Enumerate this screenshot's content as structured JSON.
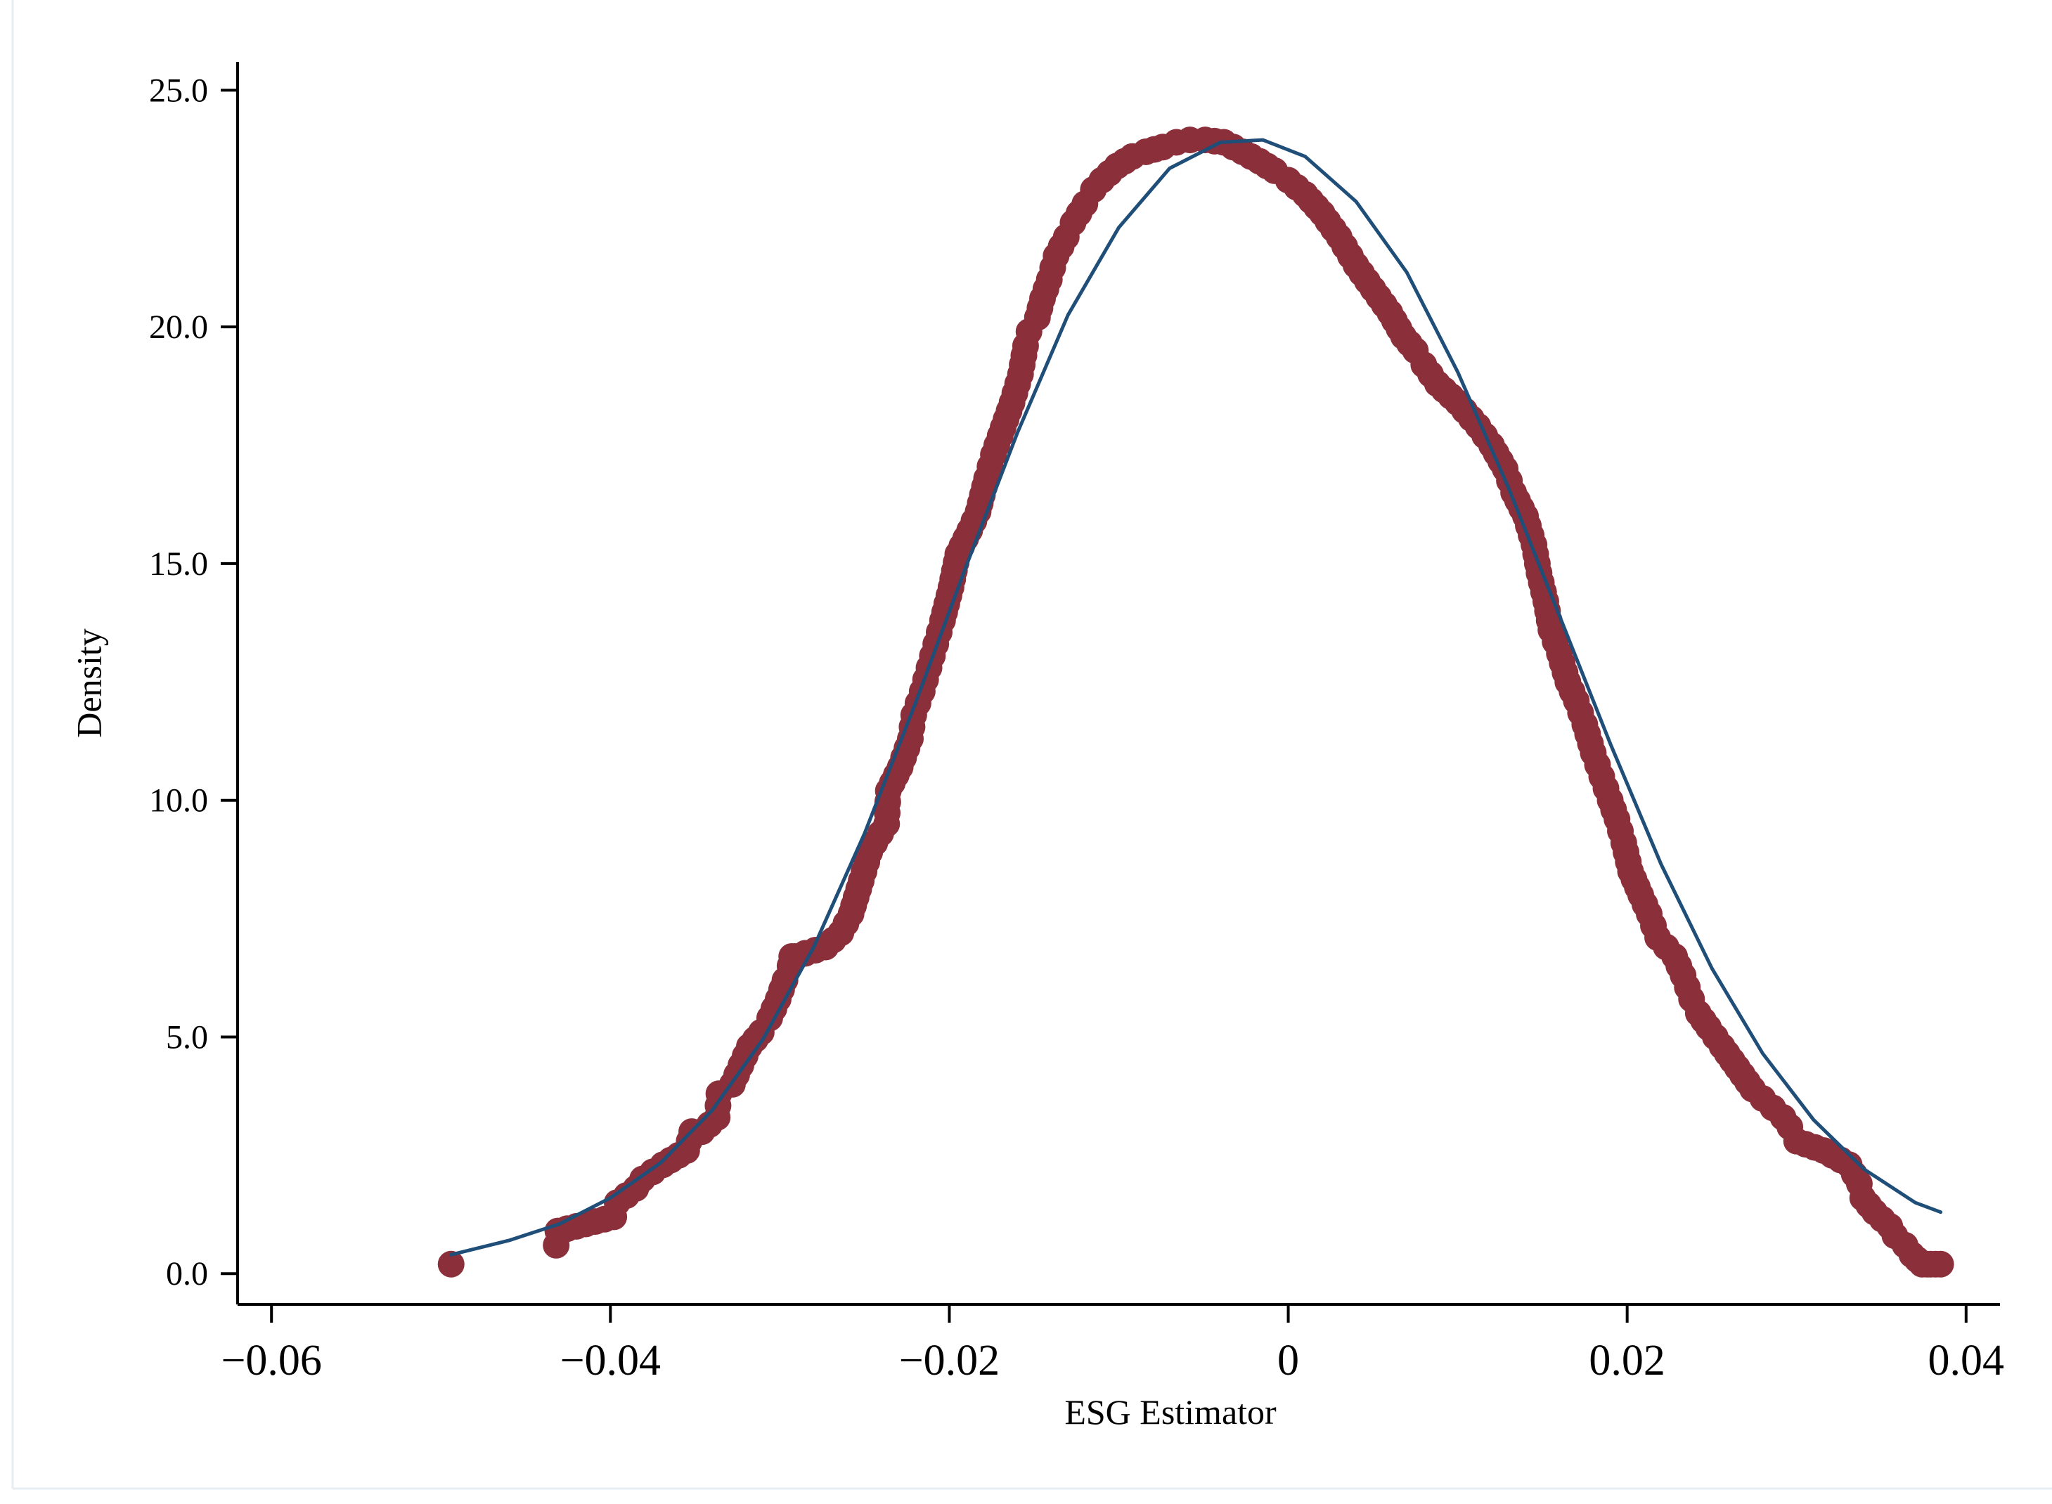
{
  "chart_data": {
    "type": "scatter",
    "xlabel": "ESG Estimator",
    "ylabel": "Density",
    "xlim": [
      -0.062,
      0.042
    ],
    "ylim": [
      -0.65,
      25.6
    ],
    "x_ticks": [
      {
        "value": -0.06,
        "label": "−0.06"
      },
      {
        "value": -0.04,
        "label": "−0.04"
      },
      {
        "value": -0.02,
        "label": "−0.02"
      },
      {
        "value": 0,
        "label": "0"
      },
      {
        "value": 0.02,
        "label": "0.02"
      },
      {
        "value": 0.04,
        "label": "0.04"
      }
    ],
    "y_ticks": [
      {
        "value": 0,
        "label": "0.0"
      },
      {
        "value": 5,
        "label": "5.0"
      },
      {
        "value": 10,
        "label": "10.0"
      },
      {
        "value": 15,
        "label": "15.0"
      },
      {
        "value": 20,
        "label": "20.0"
      },
      {
        "value": 25,
        "label": "25.0"
      }
    ],
    "grid": false,
    "legend": "none",
    "series": [
      {
        "type": "scatter",
        "color": "#8b2f3a",
        "x": [
          -0.0494,
          -0.0432,
          -0.0431,
          -0.0398,
          -0.0396,
          -0.0385,
          -0.0381,
          -0.0369,
          -0.0355,
          -0.0352,
          -0.0346,
          -0.0337,
          -0.0336,
          -0.0328,
          -0.0323,
          -0.0318,
          -0.0311,
          -0.0306,
          -0.0301,
          -0.0297,
          -0.0294,
          -0.0293,
          -0.0291,
          -0.0273,
          -0.0264,
          -0.0258,
          -0.0252,
          -0.0247,
          -0.0244,
          -0.0237,
          -0.0236,
          -0.0229,
          -0.0223,
          -0.0221,
          -0.0216,
          -0.0212,
          -0.0208,
          -0.0204,
          -0.0199,
          -0.0195,
          -0.0188,
          -0.0183,
          -0.0178,
          -0.0174,
          -0.017,
          -0.0163,
          -0.0158,
          -0.0156,
          -0.0155,
          -0.0153,
          -0.0148,
          -0.0145,
          -0.0141,
          -0.0137,
          -0.0131,
          -0.0127,
          -0.012,
          -0.0115,
          -0.011,
          -0.0101,
          -0.0092,
          -0.0084,
          -0.0074,
          -0.0066,
          -0.0058,
          -0.0049,
          -0.0038,
          -0.0027,
          -0.0017,
          -0.0008,
          0.0,
          0.001,
          0.002,
          0.003,
          0.004,
          0.005,
          0.006,
          0.0068,
          0.0075,
          0.008,
          0.0088,
          0.01,
          0.0112,
          0.012,
          0.0128,
          0.0133,
          0.014,
          0.0145,
          0.0148,
          0.0152,
          0.0155,
          0.016,
          0.0165,
          0.017,
          0.0175,
          0.018,
          0.0185,
          0.019,
          0.0194,
          0.0198,
          0.0202,
          0.0208,
          0.0213,
          0.0218,
          0.0223,
          0.0228,
          0.0233,
          0.0238,
          0.0242,
          0.0248,
          0.0252,
          0.0256,
          0.0262,
          0.0268,
          0.0274,
          0.028,
          0.0286,
          0.0292,
          0.0296,
          0.03,
          0.0316,
          0.0331,
          0.0334,
          0.0337,
          0.0339,
          0.0346,
          0.0355,
          0.0358,
          0.0364,
          0.0368,
          0.0371,
          0.0374,
          0.0377,
          0.0379,
          0.0382,
          0.0385
        ],
        "y": [
          0.2,
          0.6,
          0.9,
          1.2,
          1.5,
          1.8,
          2.0,
          2.3,
          2.6,
          3.0,
          3.0,
          3.3,
          3.8,
          4.0,
          4.4,
          4.8,
          5.1,
          5.4,
          5.8,
          6.2,
          6.5,
          6.7,
          6.7,
          6.9,
          7.2,
          7.6,
          8.3,
          8.9,
          9.1,
          9.5,
          10.2,
          10.7,
          11.3,
          11.8,
          12.3,
          12.8,
          13.3,
          13.8,
          14.5,
          15.2,
          15.7,
          16.1,
          16.8,
          17.3,
          17.7,
          18.4,
          19.0,
          19.4,
          19.6,
          19.9,
          20.2,
          20.6,
          21.0,
          21.5,
          21.9,
          22.2,
          22.6,
          22.9,
          23.1,
          23.4,
          23.6,
          23.7,
          23.8,
          23.9,
          23.95,
          23.95,
          23.9,
          23.7,
          23.5,
          23.3,
          23.1,
          22.8,
          22.4,
          21.9,
          21.3,
          20.8,
          20.3,
          19.8,
          19.5,
          19.2,
          18.8,
          18.4,
          17.9,
          17.5,
          17.0,
          16.5,
          16.0,
          15.4,
          14.8,
          14.2,
          13.6,
          13.1,
          12.5,
          12.1,
          11.6,
          11.0,
          10.5,
          10.0,
          9.6,
          9.1,
          8.5,
          8.0,
          7.6,
          7.1,
          6.9,
          6.7,
          6.3,
          5.8,
          5.5,
          5.2,
          5.0,
          4.8,
          4.5,
          4.2,
          3.9,
          3.7,
          3.5,
          3.3,
          3.1,
          2.8,
          2.6,
          2.3,
          2.1,
          1.9,
          1.6,
          1.3,
          1.0,
          0.8,
          0.6,
          0.4,
          0.3,
          0.2,
          0.2,
          0.2,
          0.2,
          0.2
        ]
      },
      {
        "type": "line",
        "color": "#1f4e79",
        "x": [
          -0.0494,
          -0.046,
          -0.043,
          -0.04,
          -0.037,
          -0.034,
          -0.031,
          -0.028,
          -0.025,
          -0.022,
          -0.019,
          -0.016,
          -0.013,
          -0.01,
          -0.007,
          -0.004,
          -0.0015,
          0.001,
          0.004,
          0.007,
          0.01,
          0.013,
          0.016,
          0.019,
          0.022,
          0.025,
          0.028,
          0.031,
          0.034,
          0.037,
          0.0385
        ],
        "y": [
          0.4,
          0.7,
          1.05,
          1.6,
          2.35,
          3.45,
          4.95,
          6.9,
          9.3,
          12.05,
          14.95,
          17.75,
          20.25,
          22.1,
          23.35,
          23.9,
          23.95,
          23.6,
          22.65,
          21.15,
          19.05,
          16.6,
          13.9,
          11.2,
          8.65,
          6.45,
          4.65,
          3.25,
          2.2,
          1.5,
          1.3
        ]
      }
    ]
  }
}
